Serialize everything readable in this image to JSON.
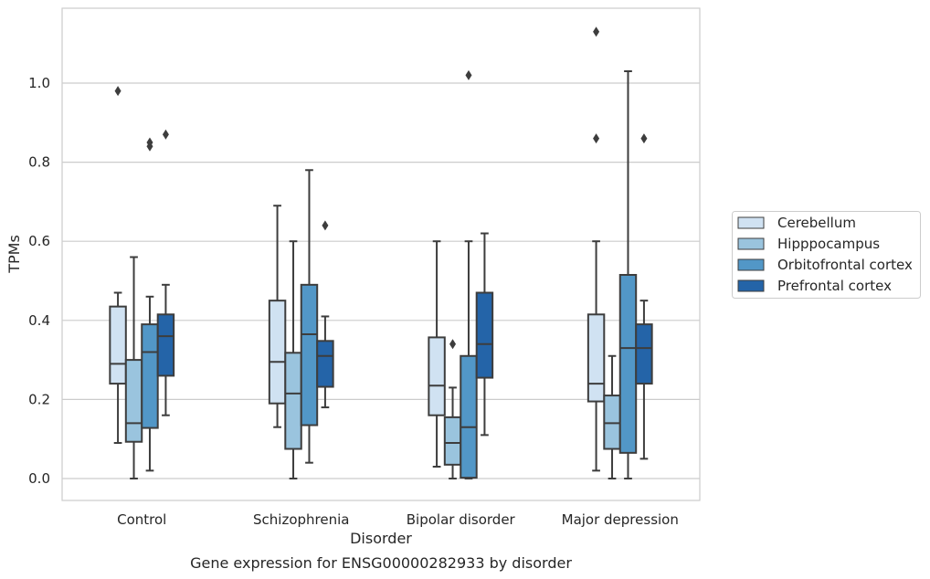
{
  "chart_data": {
    "type": "boxplot",
    "title": "",
    "caption": "Gene expression for ENSG00000282933 by disorder",
    "xlabel": "Disorder",
    "ylabel": "TPMs",
    "ylim": [
      -0.055,
      1.19
    ],
    "yticks": [
      0.0,
      0.2,
      0.4,
      0.6,
      0.8,
      1.0
    ],
    "ytick_labels": [
      "0.0",
      "0.2",
      "0.4",
      "0.6",
      "0.8",
      "1.0"
    ],
    "grid": "horizontal",
    "legend_position": "right",
    "categories": [
      "Control",
      "Schizophrenia",
      "Bipolar disorder",
      "Major depression"
    ],
    "series": [
      {
        "name": "Cerebellum",
        "color": "#d0e2f2",
        "boxes": [
          {
            "whislo": 0.09,
            "q1": 0.24,
            "med": 0.29,
            "q3": 0.435,
            "whishi": 0.47,
            "fliers": [
              0.98
            ]
          },
          {
            "whislo": 0.13,
            "q1": 0.19,
            "med": 0.295,
            "q3": 0.45,
            "whishi": 0.69,
            "fliers": []
          },
          {
            "whislo": 0.03,
            "q1": 0.16,
            "med": 0.235,
            "q3": 0.357,
            "whishi": 0.6,
            "fliers": []
          },
          {
            "whislo": 0.02,
            "q1": 0.195,
            "med": 0.24,
            "q3": 0.415,
            "whishi": 0.6,
            "fliers": [
              1.13,
              0.86
            ]
          }
        ]
      },
      {
        "name": "Hipppocampus",
        "color": "#9ac4de",
        "boxes": [
          {
            "whislo": 0.0,
            "q1": 0.093,
            "med": 0.14,
            "q3": 0.3,
            "whishi": 0.56,
            "fliers": []
          },
          {
            "whislo": 0.0,
            "q1": 0.075,
            "med": 0.215,
            "q3": 0.318,
            "whishi": 0.6,
            "fliers": []
          },
          {
            "whislo": 0.0,
            "q1": 0.035,
            "med": 0.09,
            "q3": 0.155,
            "whishi": 0.23,
            "fliers": [
              0.34
            ]
          },
          {
            "whislo": 0.0,
            "q1": 0.075,
            "med": 0.14,
            "q3": 0.21,
            "whishi": 0.31,
            "fliers": []
          }
        ]
      },
      {
        "name": "Orbitofrontal cortex",
        "color": "#5297c7",
        "boxes": [
          {
            "whislo": 0.02,
            "q1": 0.128,
            "med": 0.32,
            "q3": 0.39,
            "whishi": 0.46,
            "fliers": [
              0.85,
              0.84
            ]
          },
          {
            "whislo": 0.04,
            "q1": 0.135,
            "med": 0.365,
            "q3": 0.49,
            "whishi": 0.78,
            "fliers": []
          },
          {
            "whislo": 0.0,
            "q1": 0.002,
            "med": 0.13,
            "q3": 0.31,
            "whishi": 0.6,
            "fliers": [
              1.02
            ]
          },
          {
            "whislo": 0.0,
            "q1": 0.065,
            "med": 0.33,
            "q3": 0.515,
            "whishi": 1.03,
            "fliers": []
          }
        ]
      },
      {
        "name": "Prefrontal cortex",
        "color": "#2464a8",
        "boxes": [
          {
            "whislo": 0.16,
            "q1": 0.26,
            "med": 0.36,
            "q3": 0.415,
            "whishi": 0.49,
            "fliers": [
              0.87
            ]
          },
          {
            "whislo": 0.18,
            "q1": 0.232,
            "med": 0.31,
            "q3": 0.348,
            "whishi": 0.41,
            "fliers": [
              0.64
            ]
          },
          {
            "whislo": 0.11,
            "q1": 0.255,
            "med": 0.34,
            "q3": 0.47,
            "whishi": 0.62,
            "fliers": []
          },
          {
            "whislo": 0.05,
            "q1": 0.24,
            "med": 0.33,
            "q3": 0.39,
            "whishi": 0.45,
            "fliers": [
              0.86
            ]
          }
        ]
      }
    ]
  }
}
